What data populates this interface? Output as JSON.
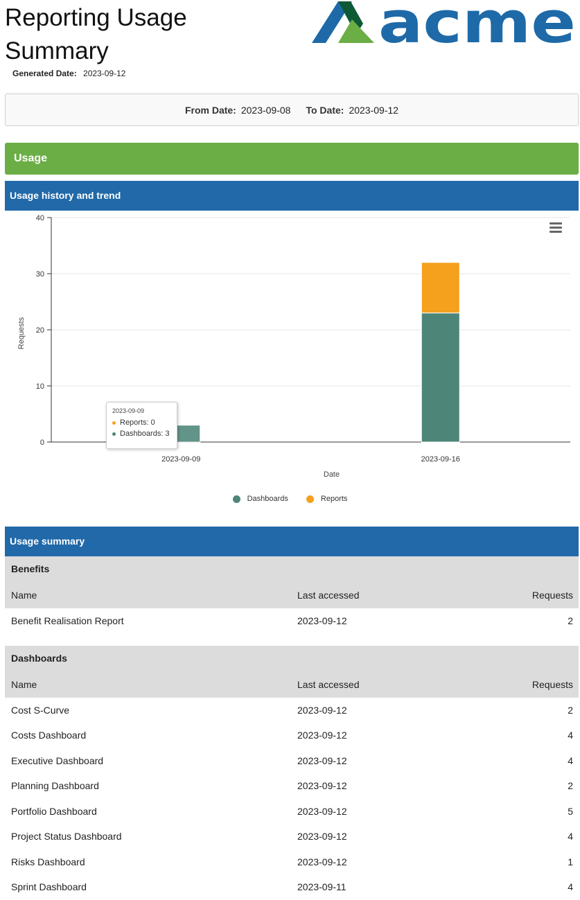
{
  "header": {
    "title": "Reporting Usage Summary",
    "generated_label": "Generated Date:",
    "generated_value": "2023-09-12",
    "logo_text": "acme"
  },
  "date_range": {
    "from_label": "From Date:",
    "from_value": "2023-09-08",
    "to_label": "To Date:",
    "to_value": "2023-09-12"
  },
  "section": {
    "title": "Usage"
  },
  "history_panel": {
    "title": "Usage history and trend"
  },
  "colors": {
    "green": "#6aae45",
    "blue": "#2169a8",
    "dashboards": "#4d8679",
    "reports": "#f5a11d"
  },
  "chart_data": {
    "type": "bar",
    "stacked": true,
    "categories": [
      "2023-09-09",
      "2023-09-16"
    ],
    "series": [
      {
        "name": "Dashboards",
        "values": [
          3,
          23
        ]
      },
      {
        "name": "Reports",
        "values": [
          0,
          9
        ]
      }
    ],
    "xlabel": "Date",
    "ylabel": "Requests",
    "ylim": [
      0,
      40
    ],
    "yticks": [
      0,
      10,
      20,
      30,
      40
    ],
    "grid": true,
    "legend": "bottom-center"
  },
  "tooltip": {
    "header": "2023-09-09",
    "rows": [
      {
        "label": "Reports:",
        "value": "0"
      },
      {
        "label": "Dashboards:",
        "value": "3"
      }
    ]
  },
  "summary_panel": {
    "title": "Usage summary"
  },
  "columns": {
    "name": "Name",
    "last": "Last accessed",
    "requests": "Requests"
  },
  "groups": [
    {
      "title": "Benefits",
      "rows": [
        {
          "name": "Benefit Realisation Report",
          "last": "2023-09-12",
          "requests": "2"
        }
      ]
    },
    {
      "title": "Dashboards",
      "rows": [
        {
          "name": "Cost S-Curve",
          "last": "2023-09-12",
          "requests": "2"
        },
        {
          "name": "Costs Dashboard",
          "last": "2023-09-12",
          "requests": "4"
        },
        {
          "name": "Executive Dashboard",
          "last": "2023-09-12",
          "requests": "4"
        },
        {
          "name": "Planning Dashboard",
          "last": "2023-09-12",
          "requests": "2"
        },
        {
          "name": "Portfolio Dashboard",
          "last": "2023-09-12",
          "requests": "5"
        },
        {
          "name": "Project Status Dashboard",
          "last": "2023-09-12",
          "requests": "4"
        },
        {
          "name": "Risks Dashboard",
          "last": "2023-09-12",
          "requests": "1"
        },
        {
          "name": "Sprint Dashboard",
          "last": "2023-09-11",
          "requests": "4"
        }
      ]
    }
  ]
}
